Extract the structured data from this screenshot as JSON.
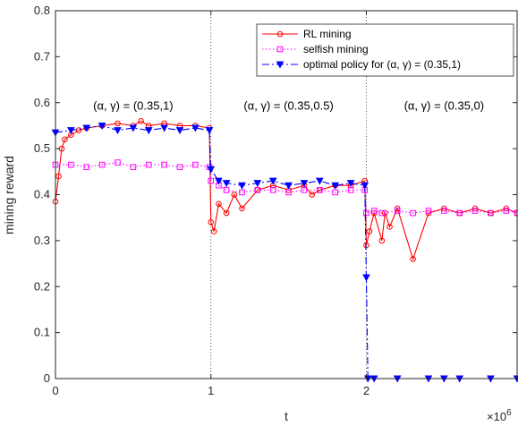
{
  "chart_data": {
    "type": "line",
    "xlabel": "t",
    "ylabel": "mining reward",
    "x_multiplier_label": "×10",
    "x_multiplier_exp": "6",
    "xlim": [
      0,
      2.97
    ],
    "ylim": [
      0,
      0.8
    ],
    "xticks": [
      0,
      1,
      2
    ],
    "xtick_labels": [
      "0",
      "1",
      "2"
    ],
    "yticks": [
      0,
      0.1,
      0.2,
      0.3,
      0.4,
      0.5,
      0.6,
      0.7,
      0.8
    ],
    "ytick_labels": [
      "0",
      "0.1",
      "0.2",
      "0.3",
      "0.4",
      "0.5",
      "0.6",
      "0.7",
      "0.8"
    ],
    "grid": false,
    "legend_position": "top-right",
    "phase_boundaries": [
      1,
      2
    ],
    "annotations": [
      {
        "text": "(α, γ) = (0.35,1)",
        "x": 0.5,
        "y": 0.585
      },
      {
        "text": "(α, γ) = (0.35,0.5)",
        "x": 1.5,
        "y": 0.585
      },
      {
        "text": "(α, γ) = (0.35,0)",
        "x": 2.5,
        "y": 0.585
      }
    ],
    "series": [
      {
        "name": "RL mining",
        "color": "#ff0000",
        "line_style": "solid",
        "marker": "circle",
        "x": [
          0.0,
          0.02,
          0.04,
          0.06,
          0.1,
          0.15,
          0.2,
          0.3,
          0.4,
          0.5,
          0.55,
          0.6,
          0.7,
          0.8,
          0.9,
          0.99,
          1.0,
          1.02,
          1.05,
          1.1,
          1.15,
          1.2,
          1.3,
          1.4,
          1.5,
          1.6,
          1.65,
          1.7,
          1.8,
          1.9,
          1.99,
          2.0,
          2.02,
          2.05,
          2.1,
          2.12,
          2.15,
          2.2,
          2.3,
          2.4,
          2.5,
          2.6,
          2.7,
          2.8,
          2.9,
          2.97
        ],
        "values": [
          0.385,
          0.44,
          0.5,
          0.52,
          0.53,
          0.54,
          0.545,
          0.55,
          0.555,
          0.55,
          0.56,
          0.55,
          0.555,
          0.55,
          0.55,
          0.545,
          0.34,
          0.32,
          0.38,
          0.36,
          0.4,
          0.37,
          0.41,
          0.42,
          0.41,
          0.42,
          0.4,
          0.41,
          0.42,
          0.42,
          0.43,
          0.29,
          0.32,
          0.36,
          0.3,
          0.36,
          0.33,
          0.37,
          0.26,
          0.36,
          0.37,
          0.36,
          0.37,
          0.36,
          0.37,
          0.36
        ]
      },
      {
        "name": "selfish mining",
        "color": "#ff00ff",
        "line_style": "dotted",
        "marker": "square",
        "x": [
          0.0,
          0.1,
          0.2,
          0.3,
          0.4,
          0.5,
          0.6,
          0.7,
          0.8,
          0.9,
          0.99,
          1.0,
          1.05,
          1.1,
          1.2,
          1.3,
          1.4,
          1.5,
          1.6,
          1.7,
          1.8,
          1.9,
          1.99,
          2.0,
          2.05,
          2.1,
          2.2,
          2.3,
          2.4,
          2.5,
          2.6,
          2.7,
          2.8,
          2.9,
          2.97
        ],
        "values": [
          0.465,
          0.465,
          0.46,
          0.465,
          0.47,
          0.46,
          0.465,
          0.465,
          0.46,
          0.465,
          0.46,
          0.43,
          0.42,
          0.41,
          0.405,
          0.41,
          0.41,
          0.405,
          0.41,
          0.41,
          0.405,
          0.41,
          0.41,
          0.36,
          0.365,
          0.36,
          0.365,
          0.36,
          0.365,
          0.365,
          0.36,
          0.365,
          0.36,
          0.365,
          0.36
        ]
      },
      {
        "name": "optimal policy for (α, γ) = (0.35,1)",
        "color": "#0000ff",
        "line_style": "dashdot",
        "marker": "triangle-down",
        "x": [
          0.0,
          0.1,
          0.2,
          0.3,
          0.4,
          0.5,
          0.6,
          0.7,
          0.8,
          0.9,
          0.99,
          1.0,
          1.05,
          1.1,
          1.2,
          1.3,
          1.4,
          1.5,
          1.6,
          1.7,
          1.8,
          1.9,
          1.99,
          2.0,
          2.01,
          2.05,
          2.2,
          2.4,
          2.5,
          2.6,
          2.8,
          2.97
        ],
        "values": [
          0.535,
          0.54,
          0.545,
          0.55,
          0.54,
          0.545,
          0.54,
          0.545,
          0.54,
          0.545,
          0.54,
          0.455,
          0.43,
          0.425,
          0.42,
          0.425,
          0.43,
          0.42,
          0.425,
          0.43,
          0.42,
          0.425,
          0.42,
          0.22,
          0.0,
          0.0,
          0.0,
          0.0,
          0.0,
          0.0,
          0.0,
          0.0
        ]
      }
    ]
  }
}
